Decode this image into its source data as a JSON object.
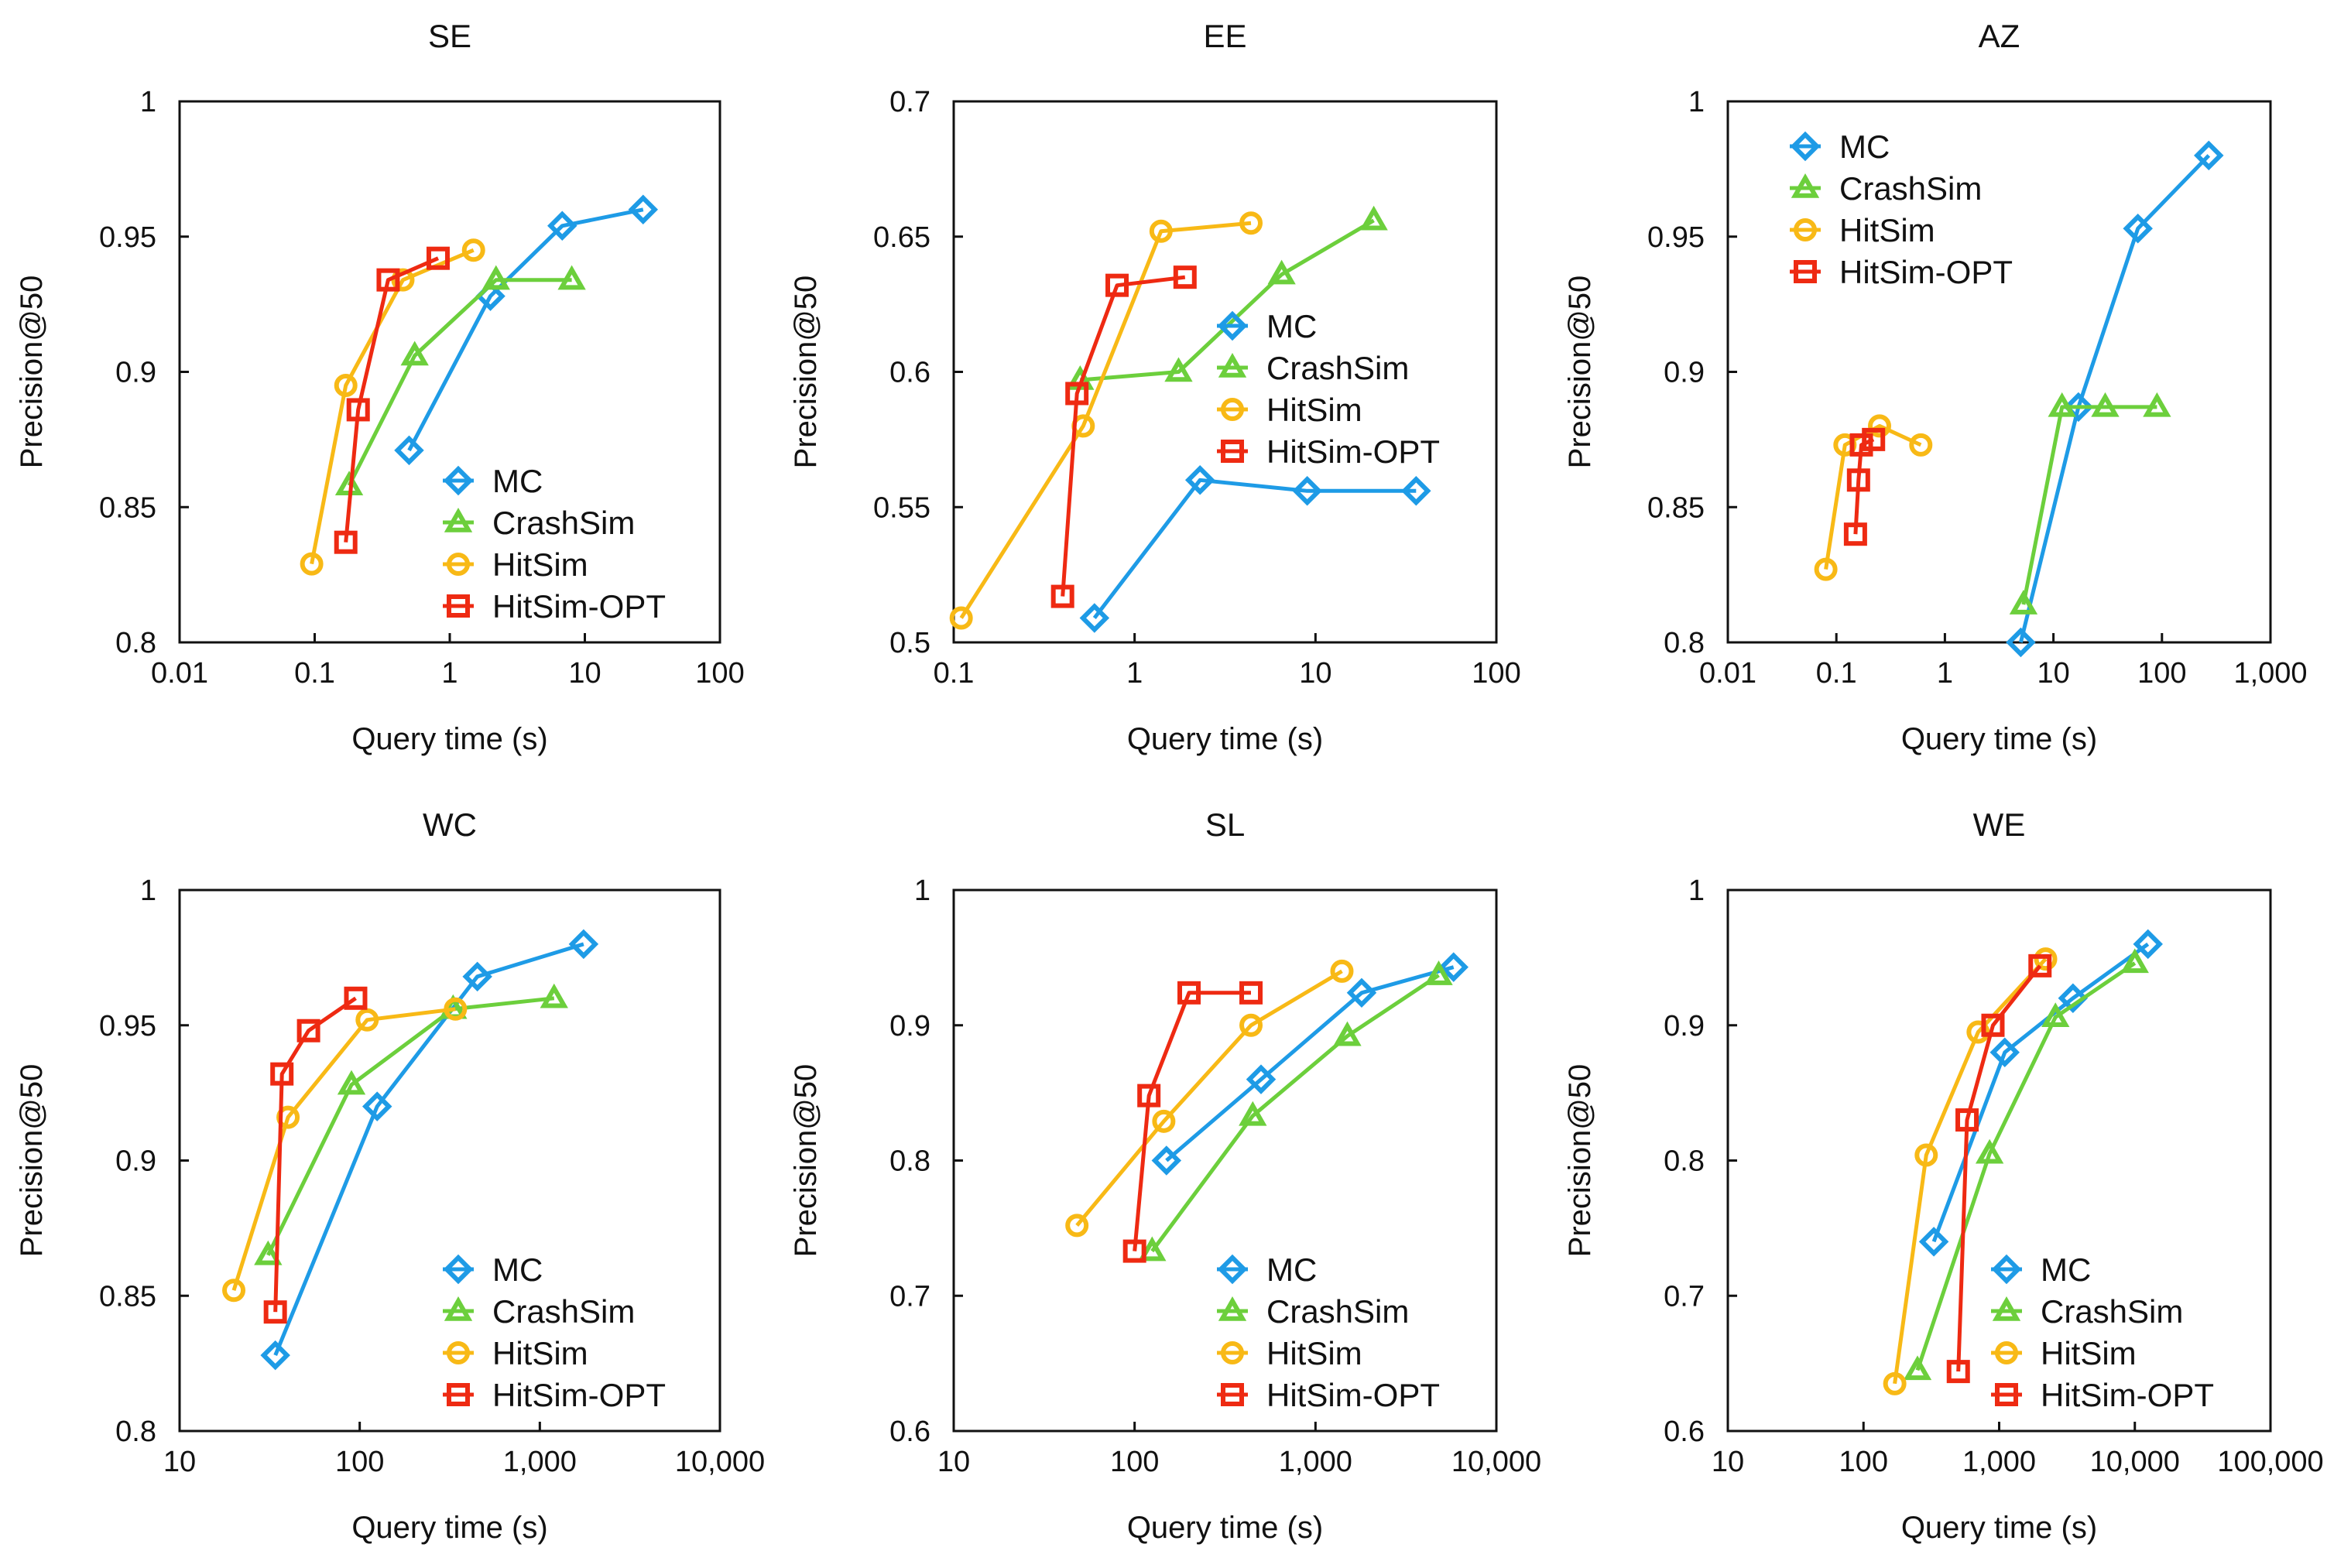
{
  "colors": {
    "MC": "#1e9be6",
    "CrashSim": "#6ccf3c",
    "HitSim": "#f8b916",
    "HitSim-OPT": "#ee2a12"
  },
  "markers": {
    "MC": "diamond",
    "CrashSim": "triangle",
    "HitSim": "circle",
    "HitSim-OPT": "square"
  },
  "chart_data": [
    {
      "type": "line",
      "title": "SE",
      "xlabel": "Query  time (s)",
      "ylabel": "Precision@50",
      "xscale": "log",
      "xlim": [
        0.01,
        100
      ],
      "ylim": [
        0.8,
        1
      ],
      "xticks": [
        0.01,
        0.1,
        1,
        10,
        100
      ],
      "xtick_labels": [
        "0.01",
        "0.1",
        "1",
        "10",
        "100"
      ],
      "yticks": [
        0.8,
        0.85,
        0.9,
        0.95,
        1
      ],
      "ytick_labels": [
        "0.8",
        "0.85",
        "0.9",
        "0.95",
        "1"
      ],
      "legend": "bottom-right",
      "series": [
        {
          "name": "MC",
          "x": [
            0.5,
            2.0,
            6.8,
            27
          ],
          "y": [
            0.871,
            0.928,
            0.954,
            0.96
          ]
        },
        {
          "name": "CrashSim",
          "x": [
            0.18,
            0.55,
            2.2,
            8.0
          ],
          "y": [
            0.858,
            0.906,
            0.934,
            0.934
          ]
        },
        {
          "name": "HitSim",
          "x": [
            0.095,
            0.17,
            0.45,
            1.5
          ],
          "y": [
            0.829,
            0.895,
            0.934,
            0.945
          ]
        },
        {
          "name": "HitSim-OPT",
          "x": [
            0.17,
            0.21,
            0.35,
            0.82
          ],
          "y": [
            0.837,
            0.886,
            0.934,
            0.942
          ]
        }
      ]
    },
    {
      "type": "line",
      "title": "EE",
      "xlabel": "Query  time (s)",
      "ylabel": "Precision@50",
      "xscale": "log",
      "xlim": [
        0.1,
        100
      ],
      "ylim": [
        0.5,
        0.7
      ],
      "xticks": [
        0.1,
        1,
        10,
        100
      ],
      "xtick_labels": [
        "0.1",
        "1",
        "10",
        "100"
      ],
      "yticks": [
        0.5,
        0.55,
        0.6,
        0.65,
        0.7
      ],
      "ytick_labels": [
        "0.5",
        "0.55",
        "0.6",
        "0.65",
        "0.7"
      ],
      "legend": "center-right",
      "series": [
        {
          "name": "MC",
          "x": [
            0.6,
            2.3,
            9.0,
            36
          ],
          "y": [
            0.509,
            0.56,
            0.556,
            0.556
          ]
        },
        {
          "name": "CrashSim",
          "x": [
            0.5,
            1.75,
            6.5,
            21
          ],
          "y": [
            0.597,
            0.6,
            0.636,
            0.656
          ]
        },
        {
          "name": "HitSim",
          "x": [
            0.11,
            0.52,
            1.4,
            4.4
          ],
          "y": [
            0.509,
            0.58,
            0.652,
            0.655
          ]
        },
        {
          "name": "HitSim-OPT",
          "x": [
            0.4,
            0.48,
            0.8,
            1.9
          ],
          "y": [
            0.517,
            0.592,
            0.632,
            0.635
          ]
        }
      ]
    },
    {
      "type": "line",
      "title": "AZ",
      "xlabel": "Query  time (s)",
      "ylabel": "Precision@50",
      "xscale": "log",
      "xlim": [
        0.01,
        1000
      ],
      "ylim": [
        0.8,
        1
      ],
      "xticks": [
        0.01,
        0.1,
        1,
        10,
        100,
        1000
      ],
      "xtick_labels": [
        "0.01",
        "0.1",
        "1",
        "10",
        "100",
        "1,000"
      ],
      "yticks": [
        0.8,
        0.85,
        0.9,
        0.95,
        1
      ],
      "ytick_labels": [
        "0.8",
        "0.85",
        "0.9",
        "0.95",
        "1"
      ],
      "legend": "top-left",
      "series": [
        {
          "name": "MC",
          "x": [
            5,
            17,
            60,
            270
          ],
          "y": [
            0.8,
            0.887,
            0.953,
            0.98
          ]
        },
        {
          "name": "CrashSim",
          "x": [
            5.3,
            12,
            30,
            90
          ],
          "y": [
            0.814,
            0.887,
            0.887,
            0.887
          ]
        },
        {
          "name": "HitSim",
          "x": [
            0.08,
            0.12,
            0.25,
            0.6
          ],
          "y": [
            0.827,
            0.873,
            0.88,
            0.873
          ]
        },
        {
          "name": "HitSim-OPT",
          "x": [
            0.15,
            0.16,
            0.17,
            0.22
          ],
          "y": [
            0.84,
            0.86,
            0.873,
            0.875
          ]
        }
      ]
    },
    {
      "type": "line",
      "title": "WC",
      "xlabel": "Query  time (s)",
      "ylabel": "Precision@50",
      "xscale": "log",
      "xlim": [
        10,
        10000
      ],
      "ylim": [
        0.8,
        1
      ],
      "xticks": [
        10,
        100,
        1000,
        10000
      ],
      "xtick_labels": [
        "10",
        "100",
        "1,000",
        "10,000"
      ],
      "yticks": [
        0.8,
        0.85,
        0.9,
        0.95,
        1
      ],
      "ytick_labels": [
        "0.8",
        "0.85",
        "0.9",
        "0.95",
        "1"
      ],
      "legend": "bottom-right",
      "series": [
        {
          "name": "MC",
          "x": [
            34,
            125,
            450,
            1750
          ],
          "y": [
            0.828,
            0.92,
            0.968,
            0.98
          ]
        },
        {
          "name": "CrashSim",
          "x": [
            31,
            90,
            330,
            1200
          ],
          "y": [
            0.865,
            0.928,
            0.956,
            0.96
          ]
        },
        {
          "name": "HitSim",
          "x": [
            20,
            40,
            110,
            340
          ],
          "y": [
            0.852,
            0.916,
            0.952,
            0.956
          ]
        },
        {
          "name": "HitSim-OPT",
          "x": [
            34,
            37,
            52,
            95
          ],
          "y": [
            0.844,
            0.932,
            0.948,
            0.96
          ]
        }
      ]
    },
    {
      "type": "line",
      "title": "SL",
      "xlabel": "Query  time (s)",
      "ylabel": "Precision@50",
      "xscale": "log",
      "xlim": [
        10,
        10000
      ],
      "ylim": [
        0.6,
        1
      ],
      "xticks": [
        10,
        100,
        1000,
        10000
      ],
      "xtick_labels": [
        "10",
        "100",
        "1,000",
        "10,000"
      ],
      "yticks": [
        0.6,
        0.7,
        0.8,
        0.9,
        1
      ],
      "ytick_labels": [
        "0.6",
        "0.7",
        "0.8",
        "0.9",
        "1"
      ],
      "legend": "bottom-right",
      "series": [
        {
          "name": "MC",
          "x": [
            150,
            500,
            1800,
            5800
          ],
          "y": [
            0.8,
            0.86,
            0.924,
            0.943
          ]
        },
        {
          "name": "CrashSim",
          "x": [
            125,
            450,
            1500,
            4800
          ],
          "y": [
            0.733,
            0.833,
            0.892,
            0.937
          ]
        },
        {
          "name": "HitSim",
          "x": [
            48,
            145,
            440,
            1400
          ],
          "y": [
            0.752,
            0.829,
            0.9,
            0.94
          ]
        },
        {
          "name": "HitSim-OPT",
          "x": [
            100,
            120,
            200,
            440
          ],
          "y": [
            0.733,
            0.848,
            0.924,
            0.924
          ]
        }
      ]
    },
    {
      "type": "line",
      "title": "WE",
      "xlabel": "Query  time (s)",
      "ylabel": "Precision@50",
      "xscale": "log",
      "xlim": [
        10,
        100000
      ],
      "ylim": [
        0.6,
        1
      ],
      "xticks": [
        10,
        100,
        1000,
        10000,
        100000
      ],
      "xtick_labels": [
        "10",
        "100",
        "1,000",
        "10,000",
        "100,000"
      ],
      "yticks": [
        0.6,
        0.7,
        0.8,
        0.9,
        1
      ],
      "ytick_labels": [
        "0.6",
        "0.7",
        "0.8",
        "0.9",
        "1"
      ],
      "legend": "bottom-right",
      "series": [
        {
          "name": "MC",
          "x": [
            330,
            1100,
            3500,
            12500
          ],
          "y": [
            0.74,
            0.88,
            0.92,
            0.96
          ]
        },
        {
          "name": "CrashSim",
          "x": [
            250,
            850,
            2600,
            10000
          ],
          "y": [
            0.645,
            0.805,
            0.906,
            0.946
          ]
        },
        {
          "name": "HitSim",
          "x": [
            170,
            290,
            700,
            2200
          ],
          "y": [
            0.635,
            0.804,
            0.895,
            0.949
          ]
        },
        {
          "name": "HitSim-OPT",
          "x": [
            500,
            580,
            900,
            2000
          ],
          "y": [
            0.644,
            0.83,
            0.9,
            0.944
          ]
        }
      ]
    }
  ]
}
